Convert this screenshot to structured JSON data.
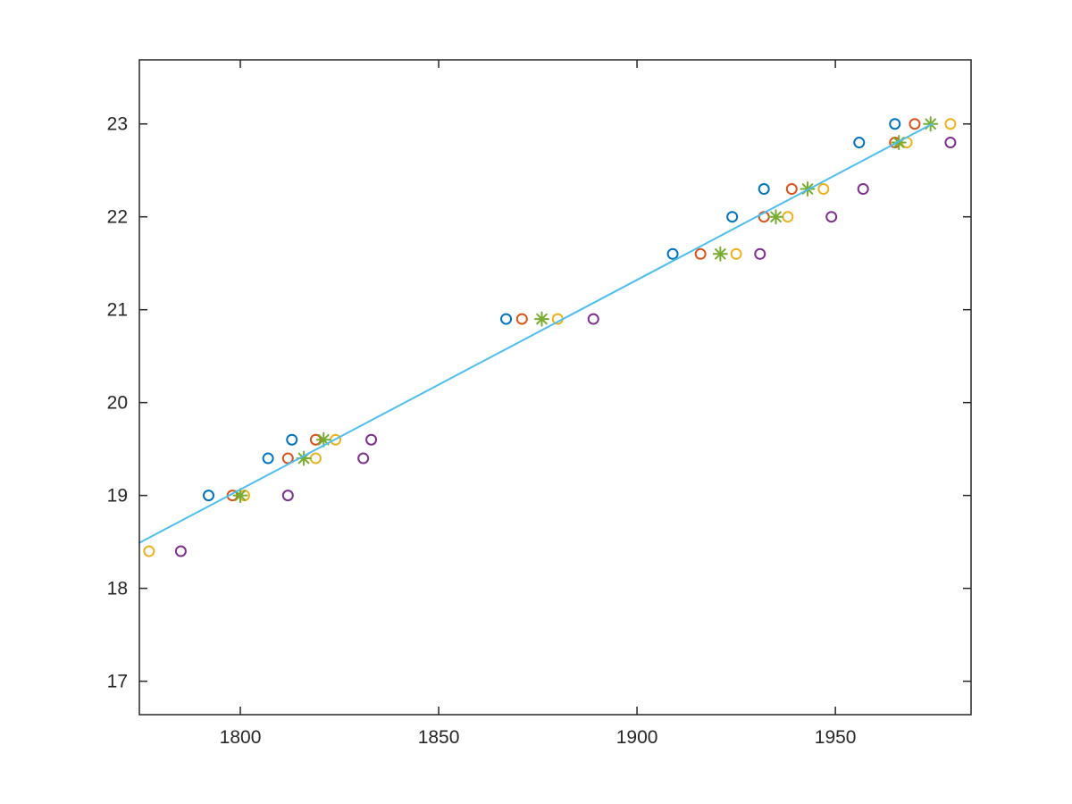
{
  "chart_data": {
    "type": "scatter",
    "title": "",
    "xlabel": "",
    "ylabel": "",
    "xlim": [
      1774.55,
      1984.2
    ],
    "ylim": [
      16.64,
      23.69
    ],
    "x_ticks": [
      1800,
      1850,
      1900,
      1950
    ],
    "y_ticks": [
      17,
      18,
      19,
      20,
      21,
      22,
      23
    ],
    "grid": false,
    "legend": "none",
    "box": "on",
    "tick_direction": "in",
    "axis_color": "#262626",
    "background_color": "#ffffff",
    "series": [
      {
        "name": "circles-blue",
        "marker": "circle",
        "color": "#0072BD",
        "points": [
          [
            1792,
            19
          ],
          [
            1807,
            19.4
          ],
          [
            1813,
            19.6
          ],
          [
            1867,
            20.9
          ],
          [
            1909,
            21.6
          ],
          [
            1924,
            22
          ],
          [
            1932,
            22.3
          ],
          [
            1956,
            22.8
          ],
          [
            1965,
            23
          ]
        ]
      },
      {
        "name": "circles-orange",
        "marker": "circle",
        "color": "#D95319",
        "points": [
          [
            1798,
            19
          ],
          [
            1812,
            19.4
          ],
          [
            1819,
            19.6
          ],
          [
            1871,
            20.9
          ],
          [
            1916,
            21.6
          ],
          [
            1932,
            22
          ],
          [
            1939,
            22.3
          ],
          [
            1965,
            22.8
          ],
          [
            1970,
            23
          ]
        ]
      },
      {
        "name": "circles-yellow",
        "marker": "circle",
        "color": "#EDB120",
        "points": [
          [
            1777,
            18.4
          ],
          [
            1801,
            19
          ],
          [
            1819,
            19.4
          ],
          [
            1824,
            19.6
          ],
          [
            1880,
            20.9
          ],
          [
            1925,
            21.6
          ],
          [
            1938,
            22
          ],
          [
            1947,
            22.3
          ],
          [
            1968,
            22.8
          ],
          [
            1979,
            23
          ]
        ]
      },
      {
        "name": "circles-purple",
        "marker": "circle",
        "color": "#7E2F8E",
        "points": [
          [
            1785,
            18.4
          ],
          [
            1812,
            19
          ],
          [
            1831,
            19.4
          ],
          [
            1833,
            19.6
          ],
          [
            1889,
            20.9
          ],
          [
            1931,
            21.6
          ],
          [
            1949,
            22
          ],
          [
            1957,
            22.3
          ],
          [
            1979,
            22.8
          ]
        ]
      },
      {
        "name": "asterisks-green",
        "marker": "asterisk",
        "color": "#77AC30",
        "points": [
          [
            1800,
            19
          ],
          [
            1816,
            19.4
          ],
          [
            1821,
            19.6
          ],
          [
            1876,
            20.9
          ],
          [
            1921,
            21.6
          ],
          [
            1935,
            22
          ],
          [
            1943,
            22.3
          ],
          [
            1966,
            22.8
          ],
          [
            1974,
            23
          ]
        ]
      },
      {
        "name": "fit-line",
        "marker": "line",
        "color": "#4DBEEE",
        "points": [
          [
            1774.55,
            18.49
          ],
          [
            1974.4,
            23.0
          ]
        ]
      }
    ]
  }
}
